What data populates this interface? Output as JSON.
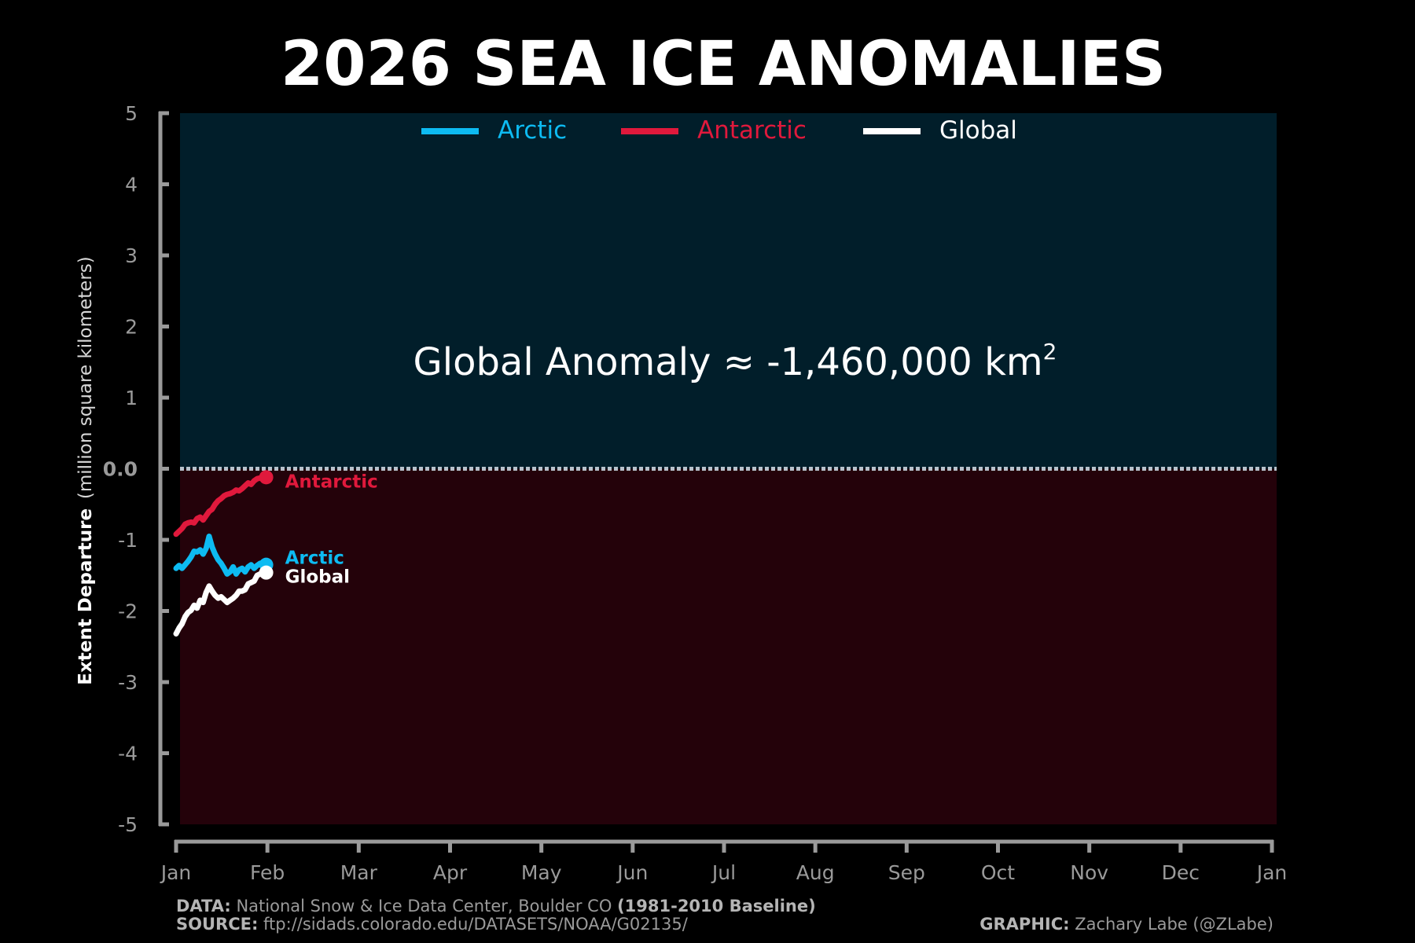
{
  "chart_data": {
    "type": "line",
    "title": "2026 SEA ICE ANOMALIES",
    "ylabel": {
      "bold": "Extent Departure",
      "light": "(million square kilometers)"
    },
    "ylim": [
      -5,
      5
    ],
    "yticks": [
      "-5",
      "-4",
      "-3",
      "-2",
      "-1",
      "0.0",
      "1",
      "2",
      "3",
      "4",
      "5"
    ],
    "xticks": [
      "Jan",
      "Feb",
      "Mar",
      "Apr",
      "May",
      "Jun",
      "Jul",
      "Aug",
      "Sep",
      "Oct",
      "Nov",
      "Dec",
      "Jan"
    ],
    "xlim": [
      1,
      366
    ],
    "legend_position": "top-center",
    "background_positive": "#011e2a",
    "background_negative": "#24020a",
    "zero_line_color": "#b8c2cc",
    "annotation": {
      "text": "Global Anomaly ≈ -1,460,000 km",
      "superscript": "2"
    },
    "series": [
      {
        "name": "Arctic",
        "color": "#0dbbf2",
        "end_label": "Arctic",
        "x": [
          1,
          2,
          3,
          4,
          5,
          6,
          7,
          8,
          9,
          10,
          11,
          12,
          13,
          14,
          15,
          16,
          17,
          18,
          19,
          20,
          21,
          22,
          23,
          24,
          25,
          26,
          27,
          28,
          29,
          30,
          31
        ],
        "values": [
          -1.4,
          -1.36,
          -1.4,
          -1.35,
          -1.3,
          -1.24,
          -1.16,
          -1.17,
          -1.14,
          -1.2,
          -1.12,
          -0.95,
          -1.1,
          -1.2,
          -1.28,
          -1.33,
          -1.4,
          -1.48,
          -1.45,
          -1.38,
          -1.48,
          -1.42,
          -1.4,
          -1.45,
          -1.38,
          -1.35,
          -1.4,
          -1.36,
          -1.33,
          -1.32,
          -1.35
        ]
      },
      {
        "name": "Antarctic",
        "color": "#e0193c",
        "end_label": "Antarctic",
        "x": [
          1,
          2,
          3,
          4,
          5,
          6,
          7,
          8,
          9,
          10,
          11,
          12,
          13,
          14,
          15,
          16,
          17,
          18,
          19,
          20,
          21,
          22,
          23,
          24,
          25,
          26,
          27,
          28,
          29,
          30,
          31
        ],
        "values": [
          -0.92,
          -0.88,
          -0.84,
          -0.78,
          -0.76,
          -0.75,
          -0.76,
          -0.7,
          -0.68,
          -0.72,
          -0.66,
          -0.6,
          -0.57,
          -0.5,
          -0.45,
          -0.42,
          -0.38,
          -0.36,
          -0.35,
          -0.33,
          -0.3,
          -0.31,
          -0.28,
          -0.24,
          -0.2,
          -0.22,
          -0.17,
          -0.14,
          -0.13,
          -0.12,
          -0.12
        ]
      },
      {
        "name": "Global",
        "color": "#ffffff",
        "end_label": "Global",
        "x": [
          1,
          2,
          3,
          4,
          5,
          6,
          7,
          8,
          9,
          10,
          11,
          12,
          13,
          14,
          15,
          16,
          17,
          18,
          19,
          20,
          21,
          22,
          23,
          24,
          25,
          26,
          27,
          28,
          29,
          30,
          31
        ],
        "values": [
          -2.32,
          -2.24,
          -2.18,
          -2.08,
          -2.02,
          -1.99,
          -1.92,
          -1.96,
          -1.85,
          -1.88,
          -1.74,
          -1.65,
          -1.72,
          -1.78,
          -1.82,
          -1.8,
          -1.84,
          -1.88,
          -1.85,
          -1.82,
          -1.78,
          -1.72,
          -1.72,
          -1.7,
          -1.62,
          -1.6,
          -1.58,
          -1.5,
          -1.48,
          -1.45,
          -1.46
        ]
      }
    ]
  },
  "footer": {
    "data_label": "DATA:",
    "data_text": " National Snow & Ice Data Center, Boulder CO ",
    "baseline": "(1981-2010 Baseline)",
    "source_label": "SOURCE:",
    "source_text": " ftp://sidads.colorado.edu/DATASETS/NOAA/G02135/",
    "graphic_label": "GRAPHIC:",
    "graphic_text": " Zachary Labe (@ZLabe)"
  }
}
